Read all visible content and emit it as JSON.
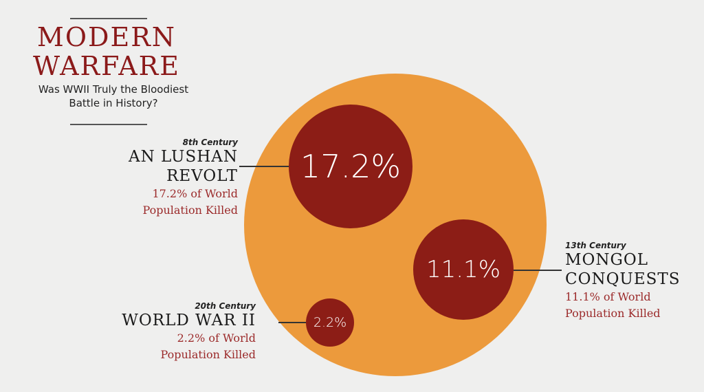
{
  "title": "MODERN WARFARE",
  "title_lines": [
    "MODERN",
    "WARFARE"
  ],
  "subtitle_lines": [
    "Was WWII Truly the Bloodiest",
    "Battle in History?"
  ],
  "colors": {
    "background": "#efefee",
    "outer_circle": "#ec9a3c",
    "inner_circles": "#8c1d16",
    "title": "#8b1a1a",
    "stat_text": "#9b2a2a"
  },
  "chart_data": {
    "type": "bubble",
    "unit": "% of World Population Killed",
    "series": [
      {
        "century": "8th Century",
        "name_lines": [
          "AN LUSHAN",
          "REVOLT"
        ],
        "value": 17.2,
        "bubble_label": "17.2%",
        "stat_lines": [
          "17.2% of World",
          "Population Killed"
        ]
      },
      {
        "century": "13th Century",
        "name_lines": [
          "MONGOL",
          "CONQUESTS"
        ],
        "value": 11.1,
        "bubble_label": "11.1%",
        "stat_lines": [
          "11.1% of World",
          "Population Killed"
        ]
      },
      {
        "century": "20th Century",
        "name_lines": [
          "WORLD WAR II"
        ],
        "value": 2.2,
        "bubble_label": "2.2%",
        "stat_lines": [
          "2.2% of World",
          "Population Killed"
        ]
      }
    ]
  }
}
